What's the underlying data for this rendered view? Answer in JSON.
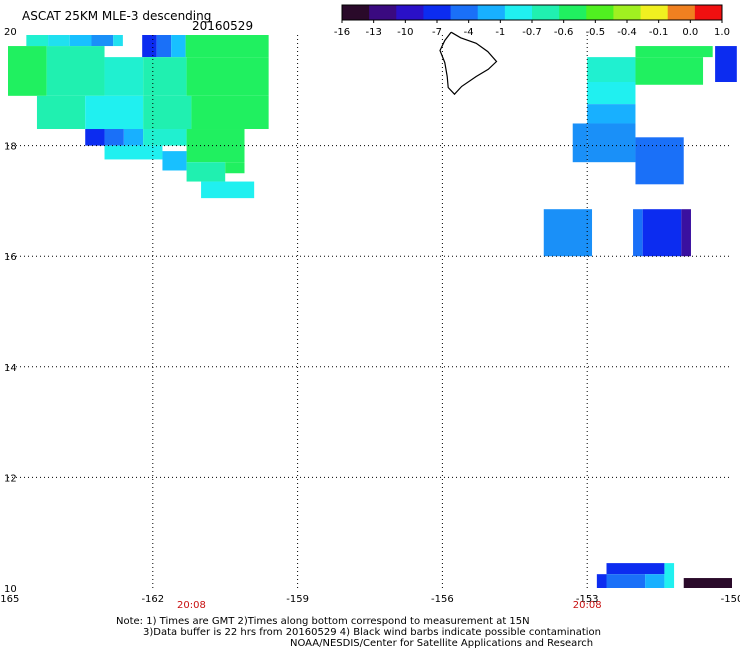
{
  "chart_data": {
    "type": "heatmap",
    "title": "ASCAT 25KM MLE-3 descending",
    "subtitle": "20160529",
    "xlim": [
      -165,
      -150
    ],
    "ylim": [
      10,
      20
    ],
    "grid": true,
    "x_ticks": [
      {
        "value": -165,
        "label": "-165"
      },
      {
        "value": -162,
        "label": "-162"
      },
      {
        "value": -159,
        "label": "-159"
      },
      {
        "value": -156,
        "label": "-156"
      },
      {
        "value": -153,
        "label": "-153"
      },
      {
        "value": -150,
        "label": "-150"
      }
    ],
    "y_ticks": [
      {
        "value": 20,
        "label": "20"
      },
      {
        "value": 18,
        "label": "18"
      },
      {
        "value": 16,
        "label": "16"
      },
      {
        "value": 14,
        "label": "14"
      },
      {
        "value": 12,
        "label": "12"
      },
      {
        "value": 10,
        "label": "10"
      }
    ],
    "time_labels": [
      {
        "x": -161.2,
        "label": "20:08"
      },
      {
        "x": -153.0,
        "label": "20:08"
      }
    ],
    "colorbar": {
      "labels": [
        "-16",
        "-13",
        "-10",
        "-7",
        "-4",
        "-1",
        "-0.7",
        "-0.6",
        "-0.5",
        "-0.4",
        "-0.1",
        "0.0",
        "1.0"
      ],
      "colors": [
        "#2a0a2a",
        "#3a0a80",
        "#2a10c8",
        "#0c2cf0",
        "#1a70f8",
        "#18b0ff",
        "#20f0f0",
        "#20f0b0",
        "#20f060",
        "#50f020",
        "#a0f020",
        "#f0f020",
        "#f08020",
        "#f01010"
      ]
    },
    "cells_lonlat_minmax_note": "each cell is [lon_min, lon_max, lat_min, lat_max, color]",
    "cells": [
      [
        -164.62,
        -164.17,
        19.8,
        20.0,
        "#20f0d0"
      ],
      [
        -164.17,
        -163.72,
        19.8,
        20.0,
        "#20e0f0"
      ],
      [
        -163.72,
        -163.27,
        19.8,
        20.0,
        "#18c0ff"
      ],
      [
        -163.27,
        -162.82,
        19.8,
        20.0,
        "#1a90f8"
      ],
      [
        -162.82,
        -162.62,
        19.8,
        20.0,
        "#20e0f0"
      ],
      [
        -162.22,
        -161.92,
        19.6,
        20.0,
        "#0c2cf0"
      ],
      [
        -161.92,
        -161.62,
        19.6,
        20.0,
        "#1a70f8"
      ],
      [
        -161.62,
        -161.32,
        19.6,
        20.0,
        "#18c0ff"
      ],
      [
        -161.32,
        -159.6,
        19.6,
        20.0,
        "#20f060"
      ],
      [
        -165.0,
        -164.2,
        18.9,
        19.8,
        "#20f060"
      ],
      [
        -164.2,
        -163.0,
        18.9,
        19.8,
        "#20f0b0"
      ],
      [
        -163.0,
        -162.2,
        18.9,
        19.6,
        "#20f0d0"
      ],
      [
        -162.2,
        -161.3,
        18.9,
        19.6,
        "#20f0b0"
      ],
      [
        -161.3,
        -159.6,
        18.9,
        19.6,
        "#20f060"
      ],
      [
        -164.4,
        -163.4,
        18.3,
        18.9,
        "#20f0b0"
      ],
      [
        -163.4,
        -162.2,
        18.3,
        18.9,
        "#20f0f0"
      ],
      [
        -162.2,
        -161.2,
        18.3,
        18.9,
        "#20f0b0"
      ],
      [
        -161.2,
        -159.6,
        18.3,
        18.9,
        "#20f060"
      ],
      [
        -163.4,
        -163.0,
        18.0,
        18.3,
        "#0c2cf0"
      ],
      [
        -163.0,
        -162.6,
        18.0,
        18.3,
        "#1a70f8"
      ],
      [
        -162.6,
        -162.2,
        18.0,
        18.3,
        "#18b0ff"
      ],
      [
        -162.2,
        -161.3,
        18.0,
        18.3,
        "#20f0d0"
      ],
      [
        -161.3,
        -160.1,
        17.7,
        18.3,
        "#20f060"
      ],
      [
        -163.0,
        -161.8,
        17.75,
        18.0,
        "#20f0f0"
      ],
      [
        -161.8,
        -161.3,
        17.55,
        17.9,
        "#18c0ff"
      ],
      [
        -161.3,
        -160.5,
        17.35,
        17.7,
        "#20f0b0"
      ],
      [
        -160.5,
        -160.1,
        17.5,
        17.7,
        "#20f060"
      ],
      [
        -161.0,
        -159.9,
        17.05,
        17.35,
        "#20f0f0"
      ],
      [
        -152.0,
        -150.4,
        19.6,
        19.8,
        "#20f060"
      ],
      [
        -153.0,
        -152.0,
        19.15,
        19.6,
        "#20f0d0"
      ],
      [
        -152.0,
        -150.6,
        19.1,
        19.6,
        "#20f060"
      ],
      [
        -150.35,
        -149.9,
        19.15,
        19.8,
        "#0c2cf0"
      ],
      [
        -153.0,
        -152.0,
        18.75,
        19.15,
        "#20f0f0"
      ],
      [
        -153.0,
        -152.0,
        18.4,
        18.75,
        "#18b0ff"
      ],
      [
        -153.3,
        -153.0,
        17.7,
        18.4,
        "#1a90f8"
      ],
      [
        -153.0,
        -152.0,
        17.7,
        18.4,
        "#1a90f8"
      ],
      [
        -152.0,
        -151.0,
        17.3,
        18.15,
        "#1a70f8"
      ],
      [
        -153.9,
        -152.9,
        16.0,
        16.85,
        "#1a90f8"
      ],
      [
        -152.05,
        -151.85,
        16.0,
        16.85,
        "#1a70f8"
      ],
      [
        -151.85,
        -151.05,
        16.0,
        16.85,
        "#0c2cf0"
      ],
      [
        -151.05,
        -150.85,
        16.0,
        16.85,
        "#3a10a0"
      ],
      [
        -152.6,
        -151.4,
        10.25,
        10.45,
        "#0c2cf0"
      ],
      [
        -152.8,
        -152.6,
        10.0,
        10.25,
        "#0c2cf0"
      ],
      [
        -152.6,
        -151.8,
        10.0,
        10.25,
        "#1a70f8"
      ],
      [
        -151.8,
        -151.4,
        10.0,
        10.25,
        "#18b0ff"
      ],
      [
        -151.4,
        -151.2,
        10.0,
        10.45,
        "#20f0f0"
      ],
      [
        -151.0,
        -150.0,
        10.0,
        10.18,
        "#2a0a2a"
      ]
    ],
    "coastline": [
      [
        -155.82,
        20.05
      ],
      [
        -155.62,
        19.95
      ],
      [
        -155.3,
        19.85
      ],
      [
        -155.06,
        19.7
      ],
      [
        -154.88,
        19.52
      ],
      [
        -155.05,
        19.38
      ],
      [
        -155.3,
        19.25
      ],
      [
        -155.6,
        19.07
      ],
      [
        -155.75,
        18.93
      ],
      [
        -155.88,
        19.05
      ],
      [
        -155.9,
        19.25
      ],
      [
        -155.95,
        19.5
      ],
      [
        -156.05,
        19.72
      ],
      [
        -155.95,
        19.9
      ],
      [
        -155.82,
        20.05
      ]
    ],
    "notes": [
      "Note: 1) Times are GMT 2)Times along bottom correspond to measurement at 15N",
      "3)Data buffer is 22 hrs from 20160529 4) Black wind barbs indicate possible contamination",
      "NOAA/NESDIS/Center for Satellite Applications and Research"
    ]
  }
}
